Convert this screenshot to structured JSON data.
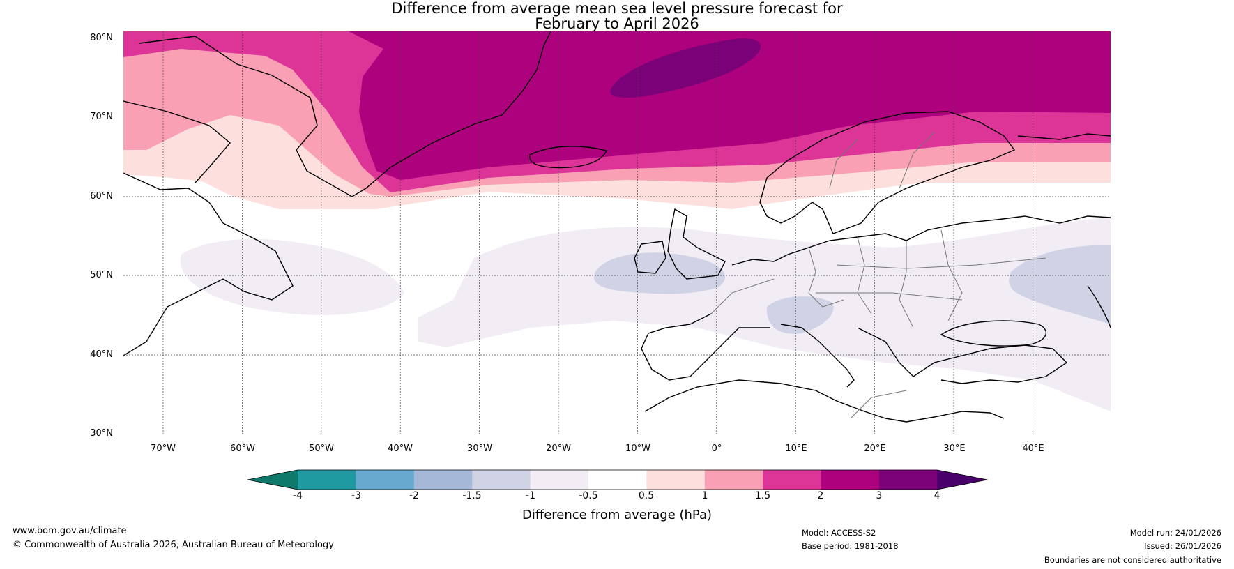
{
  "title": {
    "line1": "Difference from average mean sea level pressure forecast for",
    "line2": "February to April 2026"
  },
  "map": {
    "region": "North Atlantic and Europe",
    "latitude_labels": [
      "80°N",
      "70°N",
      "60°N",
      "50°N",
      "40°N",
      "30°N"
    ],
    "longitude_labels": [
      "70°W",
      "60°W",
      "50°W",
      "40°W",
      "30°W",
      "20°W",
      "10°W",
      "0°",
      "10°E",
      "20°E",
      "30°E",
      "40°E"
    ],
    "anomaly_regions": [
      {
        "name": "greenland-sea-high-core",
        "class": "3 to 4"
      },
      {
        "name": "north-atlantic-high",
        "class": "2 to 3"
      },
      {
        "name": "scandinavia-band",
        "class": "1.5 to 2"
      },
      {
        "name": "british-isles-low",
        "class": "-1.5 to -1"
      },
      {
        "name": "alps-low",
        "class": "-1.5 to -1"
      },
      {
        "name": "caspian-low",
        "class": "-1.5 to -1"
      }
    ]
  },
  "colorbar": {
    "ticks": [
      "-4",
      "-3",
      "-2",
      "-1.5",
      "-1",
      "-0.5",
      "0.5",
      "1",
      "1.5",
      "2",
      "3",
      "4"
    ],
    "colors": [
      "#0f7a6b",
      "#1e9aa0",
      "#67a9cf",
      "#a6b8d8",
      "#d0d2e6",
      "#f2ecf5",
      "#ffffff",
      "#fde0dd",
      "#f9a0b5",
      "#dd3497",
      "#ae017e",
      "#7a0177",
      "#49006a"
    ],
    "title": "Difference from average (hPa)"
  },
  "footer": {
    "url": "www.bom.gov.au/climate",
    "copyright": "© Commonwealth of Australia 2026, Australian Bureau of Meteorology",
    "model": "Model: ACCESS-S2",
    "base_period": "Base period: 1981-2018",
    "model_run": "Model run: 24/01/2026",
    "issued": "Issued: 26/01/2026",
    "disclaimer": "Boundaries are not considered authoritative"
  }
}
